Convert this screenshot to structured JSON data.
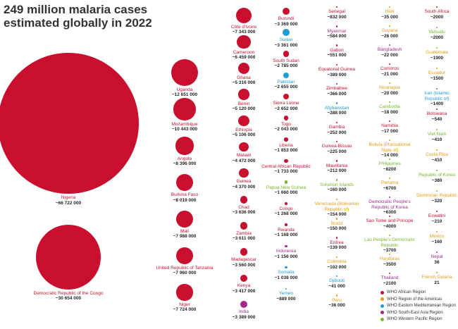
{
  "chart_data": {
    "type": "bubble",
    "title": "249 million malaria cases estimated globally in 2022",
    "categories": [
      "Nigeria",
      "Democratic Republic of the Congo",
      "Uganda",
      "Mozambique",
      "Angola",
      "Burkina Faso",
      "Mali",
      "United Republic of Tanzania",
      "Niger",
      "Côte d'Ivoire",
      "Cameroon",
      "Ghana",
      "Benin",
      "Ethiopia",
      "Malawi",
      "Guinea",
      "Chad",
      "Zambia",
      "Madagascar",
      "Kenya",
      "India",
      "Burundi",
      "Sudan",
      "South Sudan",
      "Pakistan",
      "Sierra Leone",
      "Togo",
      "Liberia",
      "Central African Republic",
      "Papua New Guinea",
      "Congo",
      "Rwanda",
      "Indonesia",
      "Somalia",
      "Yemen",
      "Senegal",
      "Myanmar",
      "Gabon",
      "Equatorial Guinea",
      "Zimbabwe",
      "Afghanistan",
      "Gambia",
      "Guinea-Bissau",
      "Mauritania",
      "Solomon Islands",
      "Venezuela (Bolivarian Republic of)",
      "Brazil",
      "Eritrea",
      "Colombia",
      "Djibouti",
      "Peru",
      "Haiti",
      "Guyana",
      "Bangladesh",
      "Comoros",
      "Nicaragua",
      "Cambodia",
      "Namibia",
      "Bolivia (Plurinational State of)",
      "Philippines",
      "Panama",
      "Democratic People's Republic of Korea",
      "Sao Tome and Principe",
      "Lao People's Democratic Republic",
      "Honduras",
      "Thailand",
      "South Africa",
      "Vanuatu",
      "Guatemala",
      "Ecuador",
      "Iran (Islamic Republic of)",
      "Botswana",
      "Viet Nam",
      "Costa Rica",
      "Republic of Korea",
      "Dominican Republic",
      "Eswatini",
      "Mexico",
      "Nepal",
      "French Guiana"
    ],
    "values": [
      66722000,
      30654000,
      12651000,
      10443000,
      8396000,
      8019000,
      7988000,
      7960000,
      7724000,
      7343000,
      6459000,
      5316000,
      5120000,
      5106000,
      4472000,
      4370000,
      3636000,
      3611000,
      3560000,
      3417000,
      3389000,
      3369000,
      3361000,
      2785000,
      2655000,
      2652000,
      2043000,
      1853000,
      1733000,
      1660000,
      1268000,
      1168000,
      1156000,
      1038000,
      889000,
      832000,
      584000,
      551000,
      389000,
      366000,
      288000,
      252000,
      225000,
      212000,
      160000,
      154000,
      150000,
      139000,
      102000,
      41000,
      36000,
      35000,
      26000,
      22000,
      21000,
      20000,
      18000,
      17000,
      14000,
      8200,
      6700,
      6300,
      4000,
      3700,
      3500,
      2100,
      2000,
      2000,
      1900,
      1500,
      1400,
      540,
      410,
      410,
      380,
      320,
      210,
      160,
      36,
      21
    ],
    "value_labels": [
      "~66 722 000",
      "~30 654 000",
      "~12 651 000",
      "~10 443 000",
      "~8 396 000",
      "~8 019 000",
      "~7 988 000",
      "~7 960 000",
      "~7 724 000",
      "~7 343 000",
      "~6 459 000",
      "~5 316 000",
      "~5 120 000",
      "~5 106 000",
      "~4 472 000",
      "~4 370 000",
      "~3 636 000",
      "~3 611 000",
      "~3 560 000",
      "~3 417 000",
      "~3 389 000",
      "~3 369 000",
      "~3 361 000",
      "~2 785 000",
      "~2 655 000",
      "~2 652 000",
      "~2 043 000",
      "~1 853 000",
      "~1 733 000",
      "~1 660 000",
      "~1 268 000",
      "~1 168 000",
      "~1 156 000",
      "~1 038 000",
      "~889 000",
      "~832 000",
      "~584 000",
      "~551 000",
      "~389 000",
      "~366 000",
      "~288 000",
      "~252 000",
      "~225 000",
      "~212 000",
      "~160 000",
      "~154 000",
      "~150 000",
      "~139 000",
      "~102 000",
      "~41 000",
      "~36 000",
      "~35 000",
      "~26 000",
      "~22 000",
      "~21 000",
      "~20 000",
      "~18 000",
      "~17 000",
      "~14 000",
      "~8200",
      "~6700",
      "~6300",
      "~4000",
      "~3700",
      "~3500",
      "~2100",
      "~2000",
      "~2000",
      "~1900",
      "~1500",
      "~1400",
      "~540",
      "~410",
      "~410",
      "~380",
      "~320",
      "~210",
      "~160",
      "36",
      "21"
    ],
    "colors": [
      "#c8102e",
      "#c8102e",
      "#c8102e",
      "#c8102e",
      "#c8102e",
      "#c8102e",
      "#c8102e",
      "#c8102e",
      "#c8102e",
      "#c8102e",
      "#c8102e",
      "#c8102e",
      "#c8102e",
      "#c8102e",
      "#c8102e",
      "#c8102e",
      "#c8102e",
      "#c8102e",
      "#c8102e",
      "#c8102e",
      "#a3288e",
      "#c8102e",
      "#1f9bd7",
      "#c8102e",
      "#1f9bd7",
      "#c8102e",
      "#c8102e",
      "#c8102e",
      "#c8102e",
      "#77b82a",
      "#c8102e",
      "#c8102e",
      "#a3288e",
      "#1f9bd7",
      "#1f9bd7",
      "#c8102e",
      "#a3288e",
      "#c8102e",
      "#c8102e",
      "#c8102e",
      "#1f9bd7",
      "#c8102e",
      "#c8102e",
      "#c8102e",
      "#77b82a",
      "#e89b0e",
      "#e89b0e",
      "#c8102e",
      "#e89b0e",
      "#1f9bd7",
      "#e89b0e",
      "#e89b0e",
      "#e89b0e",
      "#a3288e",
      "#c8102e",
      "#e89b0e",
      "#77b82a",
      "#c8102e",
      "#e89b0e",
      "#77b82a",
      "#e89b0e",
      "#a3288e",
      "#c8102e",
      "#77b82a",
      "#e89b0e",
      "#a3288e",
      "#c8102e",
      "#77b82a",
      "#e89b0e",
      "#e89b0e",
      "#1f9bd7",
      "#c8102e",
      "#77b82a",
      "#e89b0e",
      "#77b82a",
      "#e89b0e",
      "#c8102e",
      "#e89b0e",
      "#a3288e",
      "#e89b0e"
    ],
    "legend": [
      {
        "name": "WHO African Region",
        "color": "#c8102e"
      },
      {
        "name": "WHO Region of the Americas",
        "color": "#e89b0e"
      },
      {
        "name": "WHO Eastern Mediterranean Region",
        "color": "#1f9bd7"
      },
      {
        "name": "WHO South-East Asia Region",
        "color": "#a3288e"
      },
      {
        "name": "WHO Western Pacific Region",
        "color": "#77b82a"
      }
    ]
  }
}
